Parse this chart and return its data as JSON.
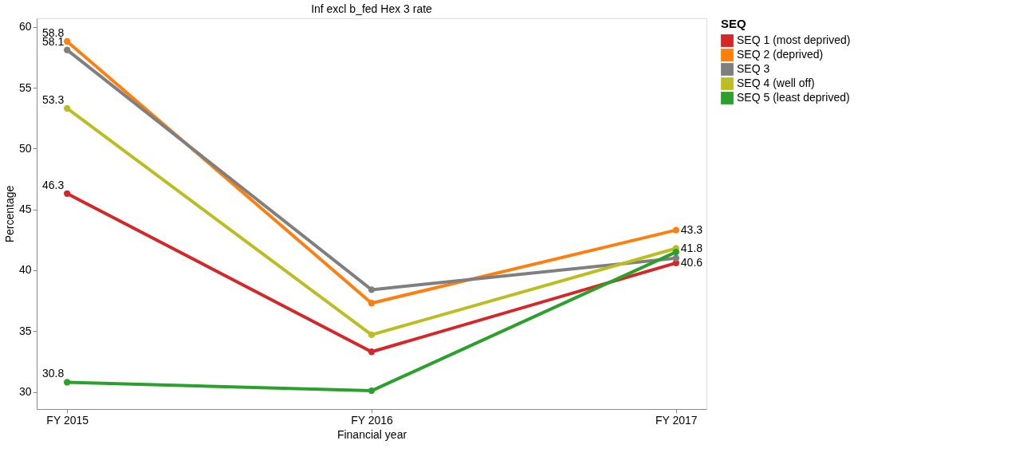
{
  "chart_data": {
    "type": "line",
    "title": "Inf excl b_fed Hex 3 rate",
    "xlabel": "Financial year",
    "ylabel": "Percentage",
    "legend_title": "SEQ",
    "categories": [
      "FY 2015",
      "FY 2016",
      "FY 2017"
    ],
    "ylim": [
      28.6,
      60.7
    ],
    "yticks": [
      30,
      35,
      40,
      45,
      50,
      55,
      60
    ],
    "grid": false,
    "legend": "right",
    "marker": "circle",
    "line_style": "solid",
    "series": [
      {
        "name": "SEQ 1 (most deprived)",
        "color": "#d62728",
        "values": [
          46.3,
          33.3,
          40.6
        ],
        "value_labels": [
          "46.3",
          null,
          "40.6"
        ]
      },
      {
        "name": "SEQ 2 (deprived)",
        "color": "#ff7f0e",
        "values": [
          58.8,
          37.3,
          43.3
        ],
        "value_labels": [
          "58.8",
          null,
          "43.3"
        ]
      },
      {
        "name": "SEQ 3",
        "color": "#7f7f7f",
        "values": [
          58.1,
          38.4,
          41.0
        ],
        "value_labels": [
          "58.1",
          null,
          null
        ]
      },
      {
        "name": "SEQ 4 (well off)",
        "color": "#bcbd22",
        "values": [
          53.3,
          34.7,
          41.8
        ],
        "value_labels": [
          "53.3",
          null,
          "41.8"
        ]
      },
      {
        "name": "SEQ 5 (least deprived)",
        "color": "#2ca02c",
        "values": [
          30.8,
          30.1,
          41.5
        ],
        "value_labels": [
          "30.8",
          null,
          null
        ]
      }
    ]
  }
}
